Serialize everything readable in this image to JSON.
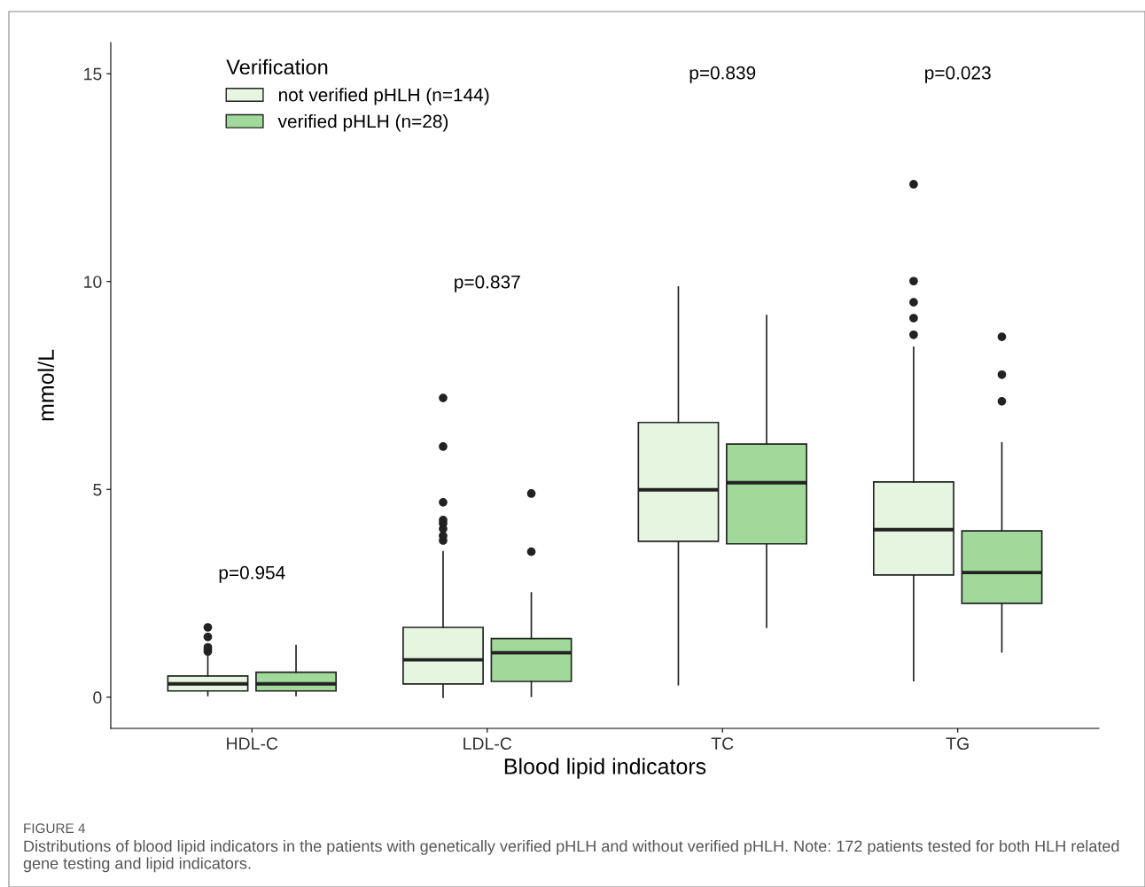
{
  "chart_data": {
    "type": "box",
    "xlabel": "Blood lipid indicators",
    "ylabel": "mmol/L",
    "legend_title": "Verification",
    "categories": [
      "HDL-C",
      "LDL-C",
      "TC",
      "TG"
    ],
    "ylim": [
      -0.75,
      15.75
    ],
    "yticks": [
      0,
      5,
      10,
      15
    ],
    "grid": false,
    "legend": "top left",
    "series": [
      {
        "name": "not verified pHLH (n=144)",
        "color": "#e5f5e0",
        "boxes": [
          {
            "low": 0.04,
            "q1": 0.15,
            "median": 0.32,
            "q3": 0.51,
            "high": 0.98,
            "outliers": [
              1.1,
              1.15,
              1.2,
              1.45,
              1.68
            ]
          },
          {
            "low": 0.0,
            "q1": 0.32,
            "median": 0.9,
            "q3": 1.68,
            "high": 3.5,
            "outliers": [
              3.77,
              3.88,
              4.05,
              4.18,
              4.26,
              4.69,
              6.03,
              7.2
            ]
          },
          {
            "low": 0.3,
            "q1": 3.75,
            "median": 4.99,
            "q3": 6.61,
            "high": 9.87
          },
          {
            "low": 0.4,
            "q1": 2.94,
            "median": 4.03,
            "q3": 5.18,
            "high": 8.42,
            "outliers": [
              8.72,
              9.12,
              9.5,
              10.01,
              12.34
            ]
          }
        ]
      },
      {
        "name": "verified pHLH (n=28)",
        "color": "#a1d99b",
        "boxes": [
          {
            "low": 0.04,
            "q1": 0.15,
            "median": 0.32,
            "q3": 0.6,
            "high": 1.24
          },
          {
            "low": 0.02,
            "q1": 0.38,
            "median": 1.07,
            "q3": 1.41,
            "high": 2.51,
            "outliers": [
              3.5,
              4.9
            ]
          },
          {
            "low": 1.68,
            "q1": 3.69,
            "median": 5.16,
            "q3": 6.09,
            "high": 9.18
          },
          {
            "low": 1.09,
            "q1": 2.26,
            "median": 3.0,
            "q3": 4.0,
            "high": 6.12,
            "outliers": [
              7.12,
              7.76,
              8.67
            ]
          }
        ]
      }
    ],
    "annotations": [
      "p=0.954",
      "p=0.837",
      "p=0.839",
      "p=0.023",
      "FIGURE 4",
      "Distributions of blood lipid indicators in the patients with genetically verified pHLH and without verified pHLH. Note: 172 patients tested for both HLH related gene testing and lipid indicators."
    ]
  }
}
